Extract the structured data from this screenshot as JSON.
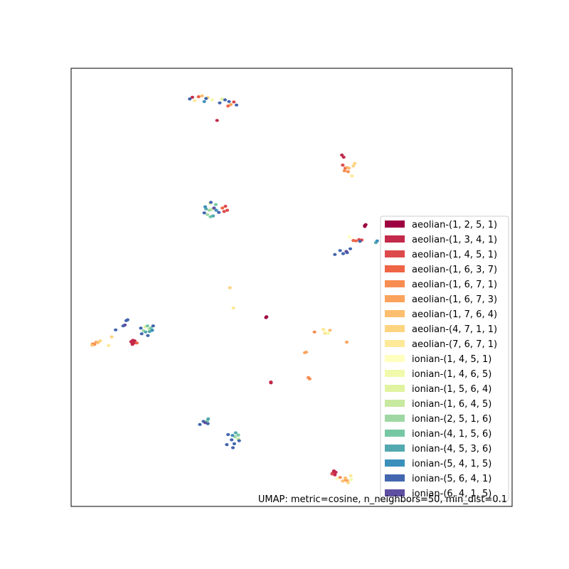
{
  "chart_data": {
    "type": "scatter",
    "annotation": "UMAP: metric=cosine, n_neighbors=50, min_dist=0.1",
    "xlim": [
      0,
      100
    ],
    "ylim": [
      0,
      100
    ],
    "grid": false,
    "ticks": false,
    "legend_placement": "lower-right",
    "series": [
      {
        "name": "aeolian-(1, 2, 5, 1)",
        "color": "#9e0142",
        "points": [
          [
            66.8,
            64.3
          ],
          [
            66.6,
            63.9
          ],
          [
            44.2,
            43.1
          ],
          [
            44.3,
            43.3
          ],
          [
            66.6,
            64.1
          ]
        ]
      },
      {
        "name": "aeolian-(1, 3, 4, 1)",
        "color": "#c2294a",
        "points": [
          [
            13.6,
            37.6
          ],
          [
            13.8,
            37.4
          ],
          [
            14.0,
            37.9
          ],
          [
            14.3,
            37.3
          ],
          [
            13.9,
            37.0
          ],
          [
            14.4,
            37.8
          ],
          [
            61.4,
            80.2
          ],
          [
            61.8,
            79.7
          ],
          [
            45.3,
            28.2
          ],
          [
            45.3,
            28.4
          ],
          [
            59.6,
            8.1
          ],
          [
            59.3,
            7.6
          ],
          [
            59.8,
            7.2
          ],
          [
            60.0,
            7.8
          ],
          [
            33.1,
            88.1
          ],
          [
            27.5,
            93.4
          ]
        ]
      },
      {
        "name": "aeolian-(1, 4, 5, 1)",
        "color": "#dd4a4c",
        "points": [
          [
            65.3,
            60.9
          ],
          [
            65.9,
            60.8
          ],
          [
            35.0,
            68.5
          ],
          [
            35.4,
            67.6
          ],
          [
            34.7,
            67.3
          ],
          [
            61.6,
            77.9
          ],
          [
            59.2,
            7.4
          ],
          [
            36.9,
            92.3
          ]
        ]
      },
      {
        "name": "aeolian-(1, 6, 3, 7)",
        "color": "#ee6445",
        "points": [
          [
            64.0,
            60.7
          ],
          [
            64.6,
            60.6
          ],
          [
            34.3,
            68.1
          ],
          [
            62.2,
            77.2
          ],
          [
            28.9,
            93.5
          ],
          [
            14.9,
            37.3
          ],
          [
            35.6,
            91.4
          ]
        ]
      },
      {
        "name": "aeolian-(1, 6, 7, 1)",
        "color": "#f88d52",
        "points": [
          [
            62.0,
            76.6
          ],
          [
            62.8,
            76.4
          ],
          [
            53.8,
            29.4
          ],
          [
            54.1,
            29.1
          ],
          [
            4.9,
            37.1
          ],
          [
            5.3,
            37.0
          ],
          [
            61.0,
            6.6
          ],
          [
            55.2,
            39.8
          ]
        ]
      },
      {
        "name": "aeolian-(1, 6, 7, 3)",
        "color": "#fba35c",
        "points": [
          [
            62.6,
            77.3
          ],
          [
            53.0,
            35.1
          ],
          [
            53.3,
            35.2
          ],
          [
            5.7,
            37.5
          ],
          [
            62.2,
            6.0
          ],
          [
            62.6,
            5.9
          ],
          [
            62.5,
            37.5
          ],
          [
            36.2,
            91.7
          ]
        ]
      },
      {
        "name": "aeolian-(1, 7, 6, 4)",
        "color": "#fdbe6f",
        "points": [
          [
            6.1,
            37.4
          ],
          [
            4.8,
            36.8
          ],
          [
            61.6,
            5.8
          ],
          [
            62.2,
            6.5
          ],
          [
            63.0,
            77.2
          ],
          [
            29.7,
            93.7
          ],
          [
            58.7,
            40.2
          ]
        ]
      },
      {
        "name": "aeolian-(4, 7, 1, 1)",
        "color": "#fed481",
        "points": [
          [
            64.3,
            78.3
          ],
          [
            64.0,
            77.7
          ],
          [
            36.0,
            49.9
          ],
          [
            6.6,
            37.8
          ],
          [
            62.8,
            5.4
          ],
          [
            31.0,
            93.3
          ],
          [
            57.6,
            39.6
          ],
          [
            9.2,
            38.7
          ]
        ]
      },
      {
        "name": "aeolian-(7, 6, 7, 1)",
        "color": "#fee999",
        "points": [
          [
            63.7,
            75.4
          ],
          [
            36.8,
            45.3
          ],
          [
            57.2,
            40.4
          ],
          [
            8.5,
            36.7
          ],
          [
            63.4,
            7.0
          ],
          [
            28.0,
            92.6
          ]
        ]
      },
      {
        "name": "ionian-(1, 4, 5, 1)",
        "color": "#ffffbf",
        "points": [
          [
            57.7,
            39.9
          ],
          [
            63.1,
            61.5
          ],
          [
            60.3,
            6.3
          ]
        ]
      },
      {
        "name": "ionian-(1, 4, 6, 5)",
        "color": "#f1f9ab",
        "points": [
          [
            58.3,
            39.5
          ],
          [
            32.0,
            92.8
          ],
          [
            63.5,
            6.1
          ]
        ]
      },
      {
        "name": "ionian-(1, 5, 6, 4)",
        "color": "#e0f3a1",
        "points": [
          [
            16.8,
            41.0
          ],
          [
            31.5,
            69.2
          ],
          [
            34.2,
            93.0
          ]
        ]
      },
      {
        "name": "ionian-(1, 6, 4, 5)",
        "color": "#c7e9a0",
        "points": [
          [
            17.7,
            40.5
          ],
          [
            31.9,
            67.8
          ],
          [
            37.9,
            15.4
          ]
        ]
      },
      {
        "name": "ionian-(2, 5, 1, 6)",
        "color": "#9fd7a4",
        "points": [
          [
            16.4,
            40.1
          ],
          [
            31.3,
            67.6
          ],
          [
            30.9,
            66.6
          ],
          [
            37.2,
            15.9
          ]
        ]
      },
      {
        "name": "ionian-(4, 1, 5, 6)",
        "color": "#76c7a4",
        "points": [
          [
            17.3,
            41.2
          ],
          [
            18.1,
            40.7
          ],
          [
            32.8,
            68.9
          ],
          [
            31.6,
            66.1
          ],
          [
            30.9,
            19.6
          ],
          [
            37.9,
            16.3
          ]
        ]
      },
      {
        "name": "ionian-(4, 5, 3, 6)",
        "color": "#52a9af",
        "points": [
          [
            16.9,
            39.8
          ],
          [
            17.8,
            39.9
          ],
          [
            32.2,
            66.3
          ],
          [
            30.6,
            67.9
          ],
          [
            31.1,
            20.0
          ],
          [
            37.3,
            16.8
          ],
          [
            69.1,
            60.2
          ]
        ]
      },
      {
        "name": "ionian-(5, 4, 1, 5)",
        "color": "#3b8fbb",
        "points": [
          [
            18.4,
            40.2
          ],
          [
            32.9,
            67.6
          ],
          [
            30.4,
            68.4
          ],
          [
            36.6,
            16.2
          ],
          [
            69.4,
            60.6
          ],
          [
            30.2,
            92.4
          ]
        ]
      },
      {
        "name": "ionian-(5, 6, 4, 1)",
        "color": "#4366ae",
        "points": [
          [
            12.5,
            42.4
          ],
          [
            12.8,
            42.6
          ],
          [
            11.8,
            41.2
          ],
          [
            10.1,
            40.3
          ],
          [
            16.0,
            39.4
          ],
          [
            15.8,
            40.7
          ],
          [
            17.4,
            39.0
          ],
          [
            18.6,
            41.2
          ],
          [
            30.0,
            19.4
          ],
          [
            29.2,
            18.7
          ],
          [
            31.0,
            18.9
          ],
          [
            35.6,
            16.4
          ],
          [
            36.4,
            15.2
          ],
          [
            37.0,
            14.3
          ],
          [
            38.1,
            15.0
          ],
          [
            36.7,
            13.4
          ],
          [
            35.3,
            14.1
          ],
          [
            30.6,
            93.1
          ],
          [
            34.9,
            92.8
          ],
          [
            37.5,
            91.6
          ],
          [
            31.7,
            69.4
          ],
          [
            30.2,
            67.0
          ],
          [
            33.5,
            67.1
          ],
          [
            61.7,
            57.7
          ],
          [
            59.8,
            57.5
          ],
          [
            62.6,
            57.9
          ],
          [
            63.3,
            58.8
          ],
          [
            65.5,
            60.5
          ],
          [
            61.0,
            58.4
          ],
          [
            26.9,
            93.0
          ],
          [
            33.7,
            92.1
          ],
          [
            35.8,
            92.4
          ]
        ]
      },
      {
        "name": "ionian-(6, 4, 1, 5)",
        "color": "#5e4fa2",
        "points": [
          [
            12.2,
            41.4
          ],
          [
            30.4,
            19.1
          ],
          [
            62.4,
            58.2
          ],
          [
            32.4,
            68.1
          ]
        ]
      }
    ]
  }
}
